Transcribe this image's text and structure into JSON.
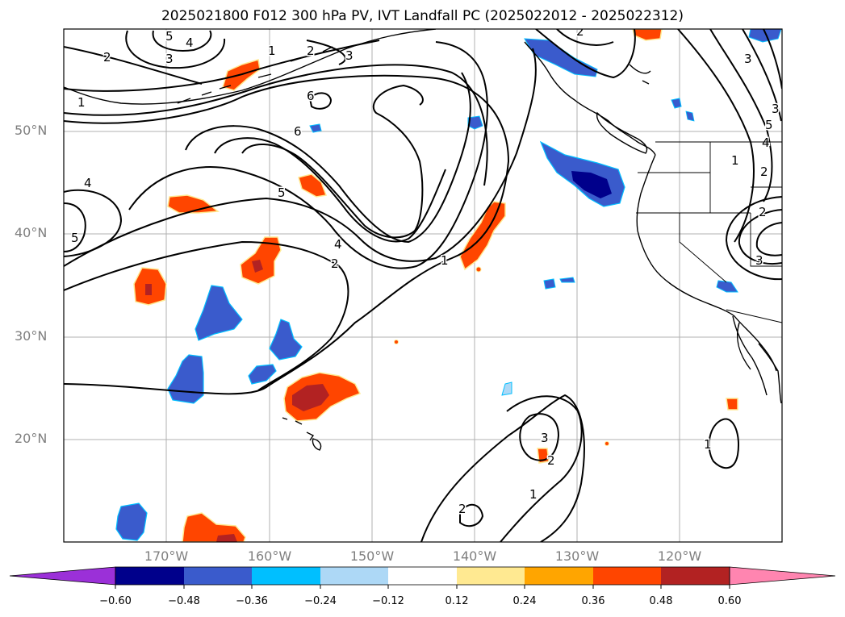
{
  "title": "2025021800 F012 300 hPa PV, IVT Landfall PC (2025022012 - 2025022312)",
  "lat_labels": [
    "50°N",
    "40°N",
    "30°N",
    "20°N"
  ],
  "lon_labels": [
    "170°W",
    "160°W",
    "150°W",
    "140°W",
    "130°W",
    "120°W"
  ],
  "colorbar": {
    "tick_labels": [
      "−0.60",
      "−0.48",
      "−0.36",
      "−0.24",
      "−0.12",
      "0.12",
      "0.24",
      "0.36",
      "0.48",
      "0.60"
    ],
    "colors": {
      "under": "#9b30d8",
      "lvl_m060": "#00008b",
      "lvl_m048": "#3a5bcc",
      "lvl_m036": "#00bfff",
      "lvl_m024": "#add8f6",
      "lvl_m012": "#ffffff",
      "lvl_p012": "#ffe991",
      "lvl_p024": "#ffa500",
      "lvl_p036": "#ff4500",
      "lvl_p048": "#b22222",
      "over": "#ff85b0"
    }
  },
  "contour_labels": [
    "5",
    "4",
    "3",
    "2",
    "1",
    "2",
    "3",
    "1",
    "2",
    "6",
    "6",
    "4",
    "5",
    "5",
    "4",
    "2",
    "1",
    "3",
    "2",
    "1",
    "3",
    "2",
    "3",
    "5",
    "4",
    "2",
    "1",
    "2",
    "3",
    "1"
  ]
}
